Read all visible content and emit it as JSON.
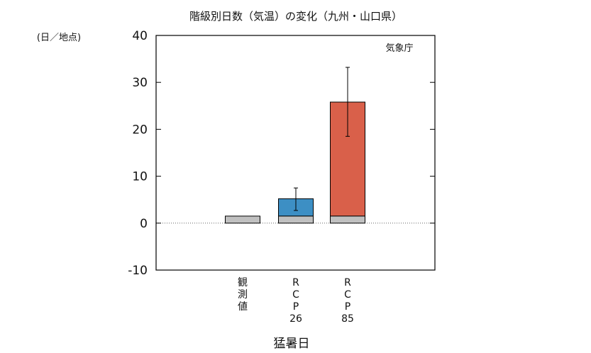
{
  "chart_data": {
    "type": "bar",
    "title": "階級別日数（気温）の変化（九州・山口県）",
    "ylabel": "(日／地点)",
    "xlabel": "猛暑日",
    "source_label": "気象庁",
    "ylim": [
      -10,
      40
    ],
    "yticks": [
      -10,
      0,
      10,
      20,
      30,
      40
    ],
    "grid": false,
    "zero_line": "dotted",
    "categories": [
      {
        "label_lines": [
          "観",
          "測",
          "値"
        ]
      },
      {
        "label_lines": [
          "R",
          "C",
          "P",
          "26"
        ]
      },
      {
        "label_lines": [
          "R",
          "C",
          "P",
          "85"
        ]
      }
    ],
    "series": [
      {
        "role": "baseline",
        "color": "#c0c0c0",
        "values": [
          1.5,
          1.5,
          1.5
        ]
      },
      {
        "role": "change",
        "colors": [
          "#c0c0c0",
          "#3d8fc4",
          "#d9604a"
        ],
        "values": [
          1.5,
          5.2,
          25.8
        ]
      }
    ],
    "error_bars": [
      null,
      {
        "low": 2.7,
        "high": 7.5
      },
      {
        "low": 18.5,
        "high": 33.2
      }
    ]
  }
}
